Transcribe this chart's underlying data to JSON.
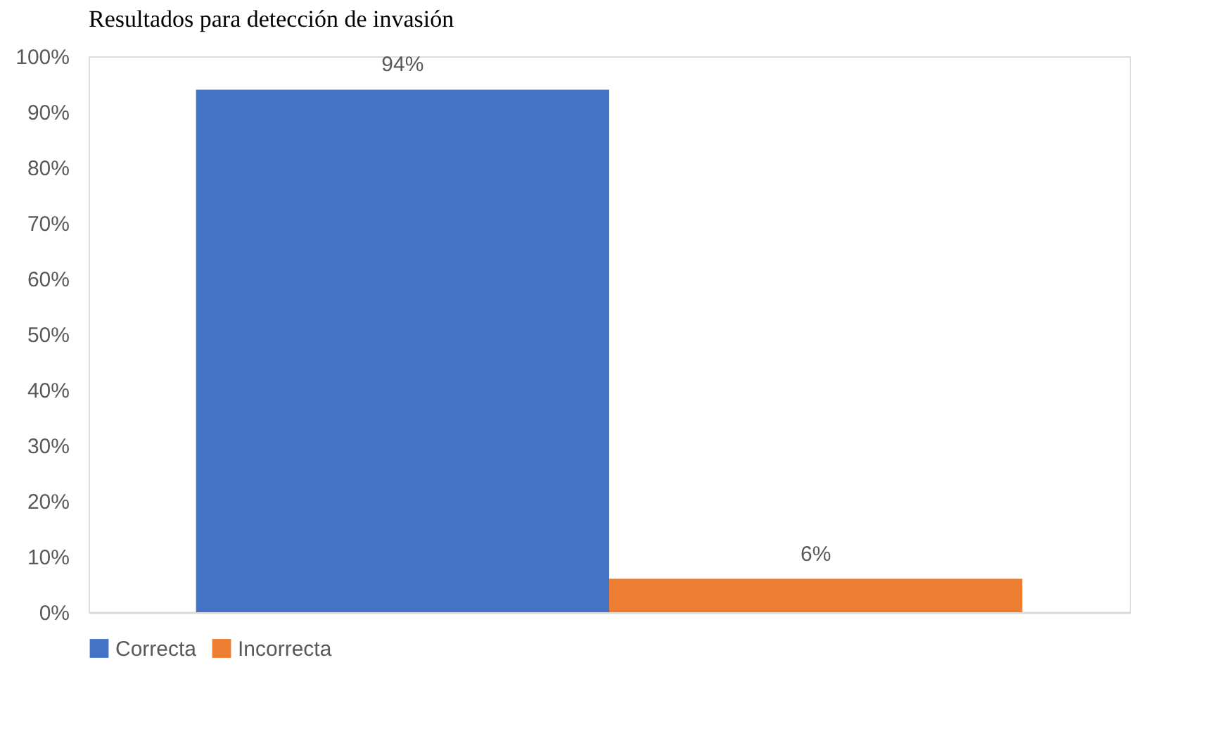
{
  "chart_data": {
    "type": "bar",
    "title": "Resultados para detección de invasión",
    "categories": [
      null
    ],
    "series": [
      {
        "name": "Correcta",
        "color": "#4472c4",
        "values": [
          94
        ],
        "value_labels": [
          "94%"
        ]
      },
      {
        "name": "Incorrecta",
        "color": "#ed7d31",
        "values": [
          6
        ],
        "value_labels": [
          "6%"
        ]
      }
    ],
    "ylim": [
      0,
      100
    ],
    "yticks": [
      {
        "value": 0,
        "label": "0%"
      },
      {
        "value": 10,
        "label": "10%"
      },
      {
        "value": 20,
        "label": "20%"
      },
      {
        "value": 30,
        "label": "30%"
      },
      {
        "value": 40,
        "label": "40%"
      },
      {
        "value": 50,
        "label": "50%"
      },
      {
        "value": 60,
        "label": "60%"
      },
      {
        "value": 70,
        "label": "70%"
      },
      {
        "value": 80,
        "label": "80%"
      },
      {
        "value": 90,
        "label": "90%"
      },
      {
        "value": 100,
        "label": "100%"
      }
    ],
    "grid": false,
    "legend": "bottom",
    "tick_labels": "y"
  }
}
